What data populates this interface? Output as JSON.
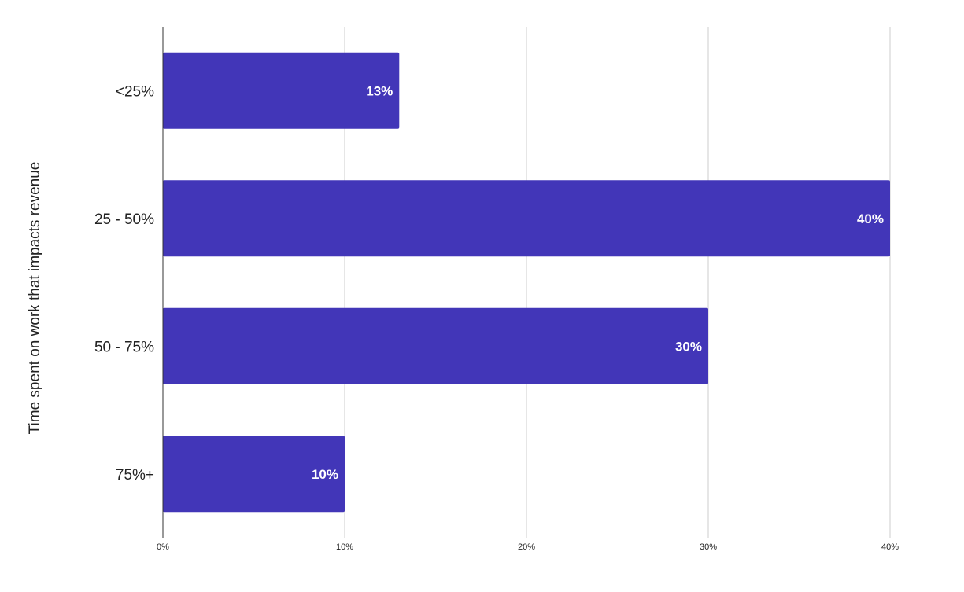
{
  "chart_data": {
    "type": "bar",
    "orientation": "horizontal",
    "title": "",
    "xlabel": "",
    "ylabel": "Time spent on work that impacts revenue",
    "categories": [
      "<25%",
      "25 - 50%",
      "50 - 75%",
      "75%+"
    ],
    "values": [
      13,
      40,
      30,
      10
    ],
    "value_labels": [
      "13%",
      "40%",
      "30%",
      "10%"
    ],
    "xlim": [
      0,
      40
    ],
    "x_ticks": [
      0,
      10,
      20,
      30,
      40
    ],
    "x_tick_labels": [
      "0%",
      "10%",
      "20%",
      "30%",
      "40%"
    ],
    "grid": true,
    "legend": "none",
    "bar_color": "#4236b8",
    "grid_color": "#cccccc",
    "axis_color": "#333333",
    "label_color": "#ffffff"
  }
}
